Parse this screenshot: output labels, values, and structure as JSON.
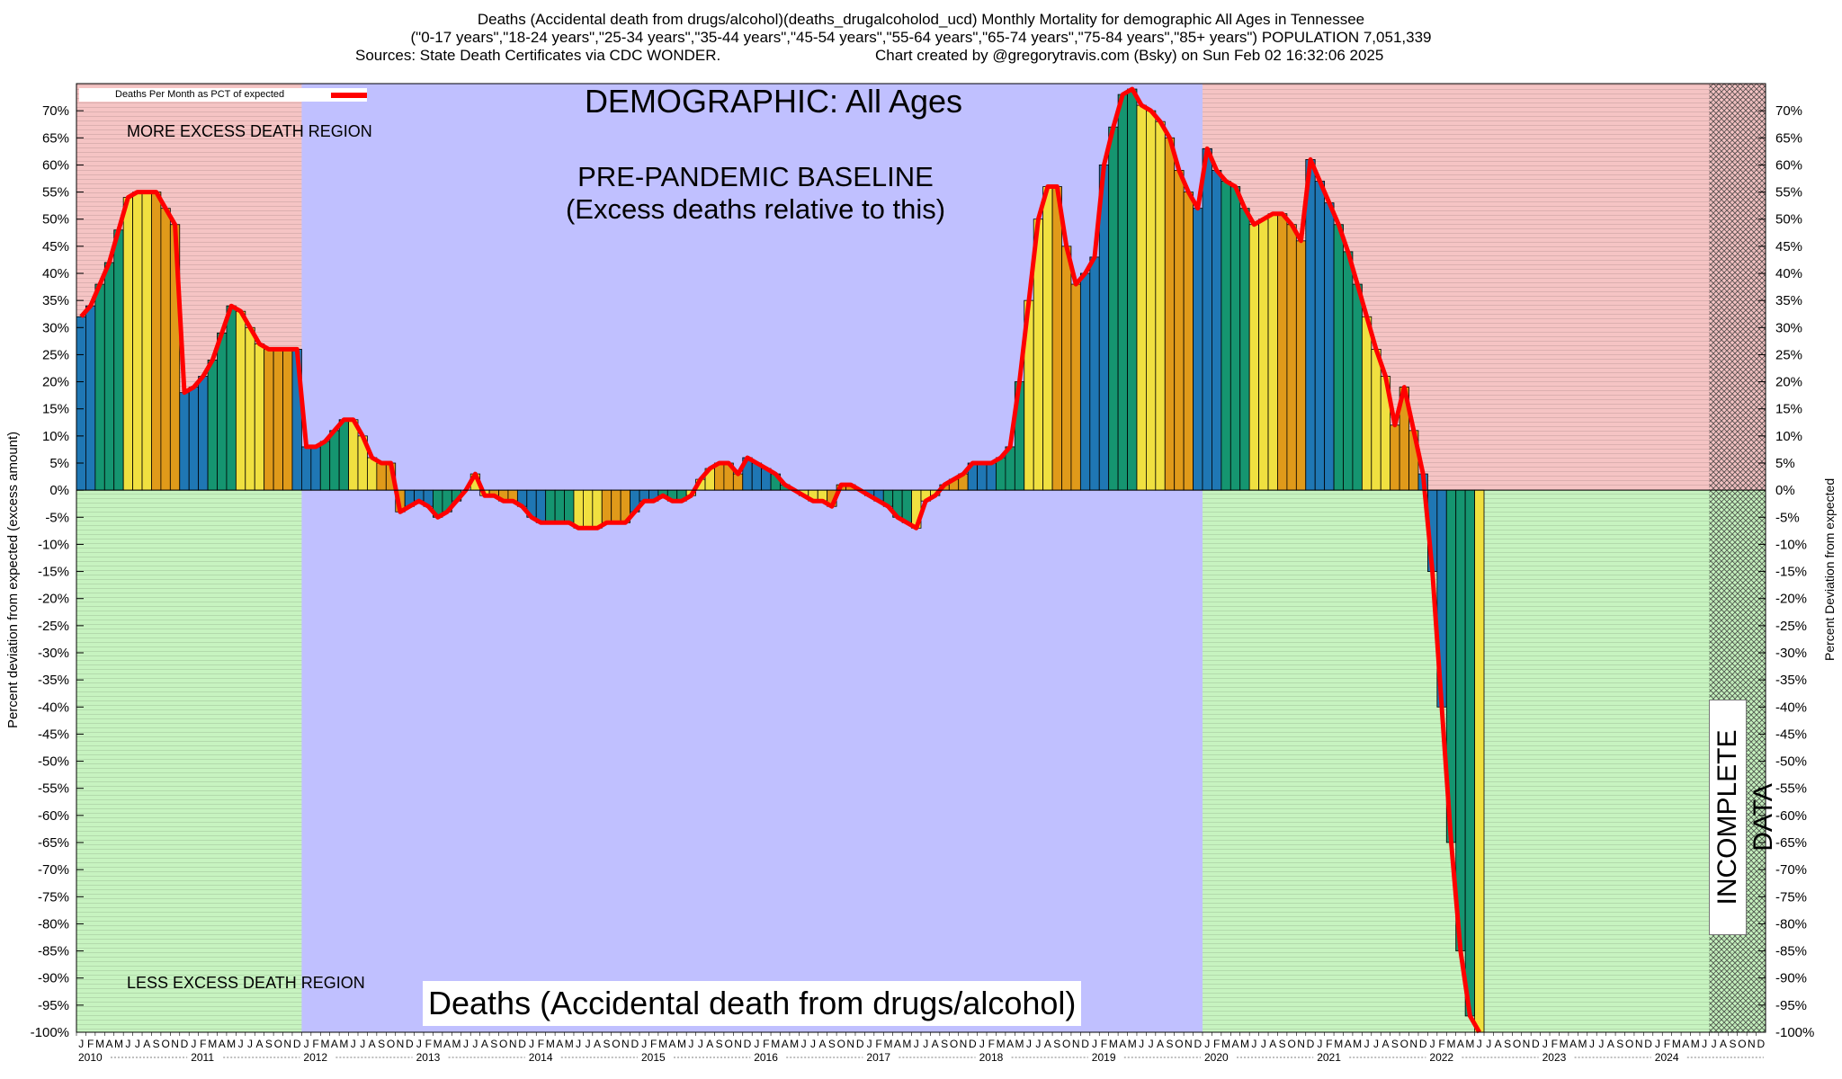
{
  "titles": {
    "line1": "Deaths (Accidental death from drugs/alcohol)(deaths_drugalcoholod_ucd)  Monthly Mortality for demographic All Ages in Tennessee",
    "line2": "(\"0-17 years\",\"18-24 years\",\"25-34 years\",\"35-44 years\",\"45-54 years\",\"55-64 years\",\"65-74 years\",\"75-84 years\",\"85+ years\") POPULATION 7,051,339",
    "line3_left": "Sources: State Death Certificates via CDC WONDER.",
    "line3_right": "Chart created by @gregorytravis.com (Bsky) on Sun Feb 02 16:32:06 2025"
  },
  "labels": {
    "demographic": "DEMOGRAPHIC: All Ages",
    "baseline_line1": "PRE-PANDEMIC BASELINE",
    "baseline_line2": "(Excess deaths relative to this)",
    "more_excess": "MORE EXCESS DEATH REGION",
    "less_excess": "LESS EXCESS DEATH REGION",
    "bottom_title": "Deaths (Accidental death from drugs/alcohol)",
    "incomplete": "INCOMPLETE DATA",
    "legend": "Deaths Per Month as PCT of expected",
    "ylabel_left": "Percent deviation from expected (excess amount)",
    "ylabel_right": "Percent Deviation from expected"
  },
  "colors": {
    "more_region": "#f5c4c4",
    "less_region": "#c7f3c0",
    "baseline_region": "#c0c0ff",
    "line": "#ff0000",
    "bar_winter": "#1f77b4",
    "bar_spring": "#159570",
    "bar_summer": "#f0e040",
    "bar_fall": "#e09a1a"
  },
  "chart_data": {
    "type": "bar",
    "start": "2010-01",
    "x_month_letters": [
      "J",
      "F",
      "M",
      "A",
      "M",
      "J",
      "J",
      "A",
      "S",
      "O",
      "N",
      "D"
    ],
    "years": [
      "2010",
      "2011",
      "2012",
      "2013",
      "2014",
      "2015",
      "2016",
      "2017",
      "2018",
      "2019",
      "2020",
      "2021",
      "2022",
      "2023",
      "2024"
    ],
    "ylim": [
      -100,
      75
    ],
    "yticks": [
      70,
      65,
      60,
      55,
      50,
      45,
      40,
      35,
      30,
      25,
      20,
      15,
      10,
      5,
      0,
      -5,
      -10,
      -15,
      -20,
      -25,
      -30,
      -35,
      -40,
      -45,
      -50,
      -55,
      -60,
      -65,
      -70,
      -75,
      -80,
      -85,
      -90,
      -95,
      -100
    ],
    "baseline_period": [
      "2012-01",
      "2019-12"
    ],
    "incomplete_period": [
      "2024-07",
      "2024-12"
    ],
    "series": [
      {
        "name": "Deaths Per Month as PCT of expected",
        "values": [
          32,
          34,
          38,
          42,
          48,
          54,
          55,
          55,
          55,
          52,
          49,
          18,
          19,
          21,
          24,
          29,
          34,
          33,
          30,
          27,
          26,
          26,
          26,
          26,
          8,
          8,
          9,
          11,
          13,
          13,
          10,
          6,
          5,
          5,
          -4,
          -3,
          -2,
          -3,
          -5,
          -4,
          -2,
          0,
          3,
          -1,
          -1,
          -2,
          -2,
          -3,
          -5,
          -6,
          -6,
          -6,
          -6,
          -7,
          -7,
          -7,
          -6,
          -6,
          -6,
          -4,
          -2,
          -2,
          -1,
          -2,
          -2,
          -1,
          2,
          4,
          5,
          5,
          3,
          6,
          5,
          4,
          3,
          1,
          0,
          -1,
          -2,
          -2,
          -3,
          1,
          1,
          0,
          -1,
          -2,
          -3,
          -5,
          -6,
          -7,
          -2,
          -1,
          1,
          2,
          3,
          5,
          5,
          5,
          6,
          8,
          20,
          35,
          50,
          56,
          56,
          45,
          38,
          40,
          43,
          60,
          67,
          73,
          74,
          71,
          70,
          68,
          65,
          59,
          55,
          52,
          63,
          59,
          57,
          56,
          52,
          49,
          50,
          51,
          51,
          49,
          46,
          61,
          57,
          53,
          49,
          44,
          38,
          32,
          26,
          21,
          12,
          19,
          11,
          3,
          -15,
          -40,
          -65,
          -85,
          -97,
          -100
        ]
      }
    ]
  }
}
